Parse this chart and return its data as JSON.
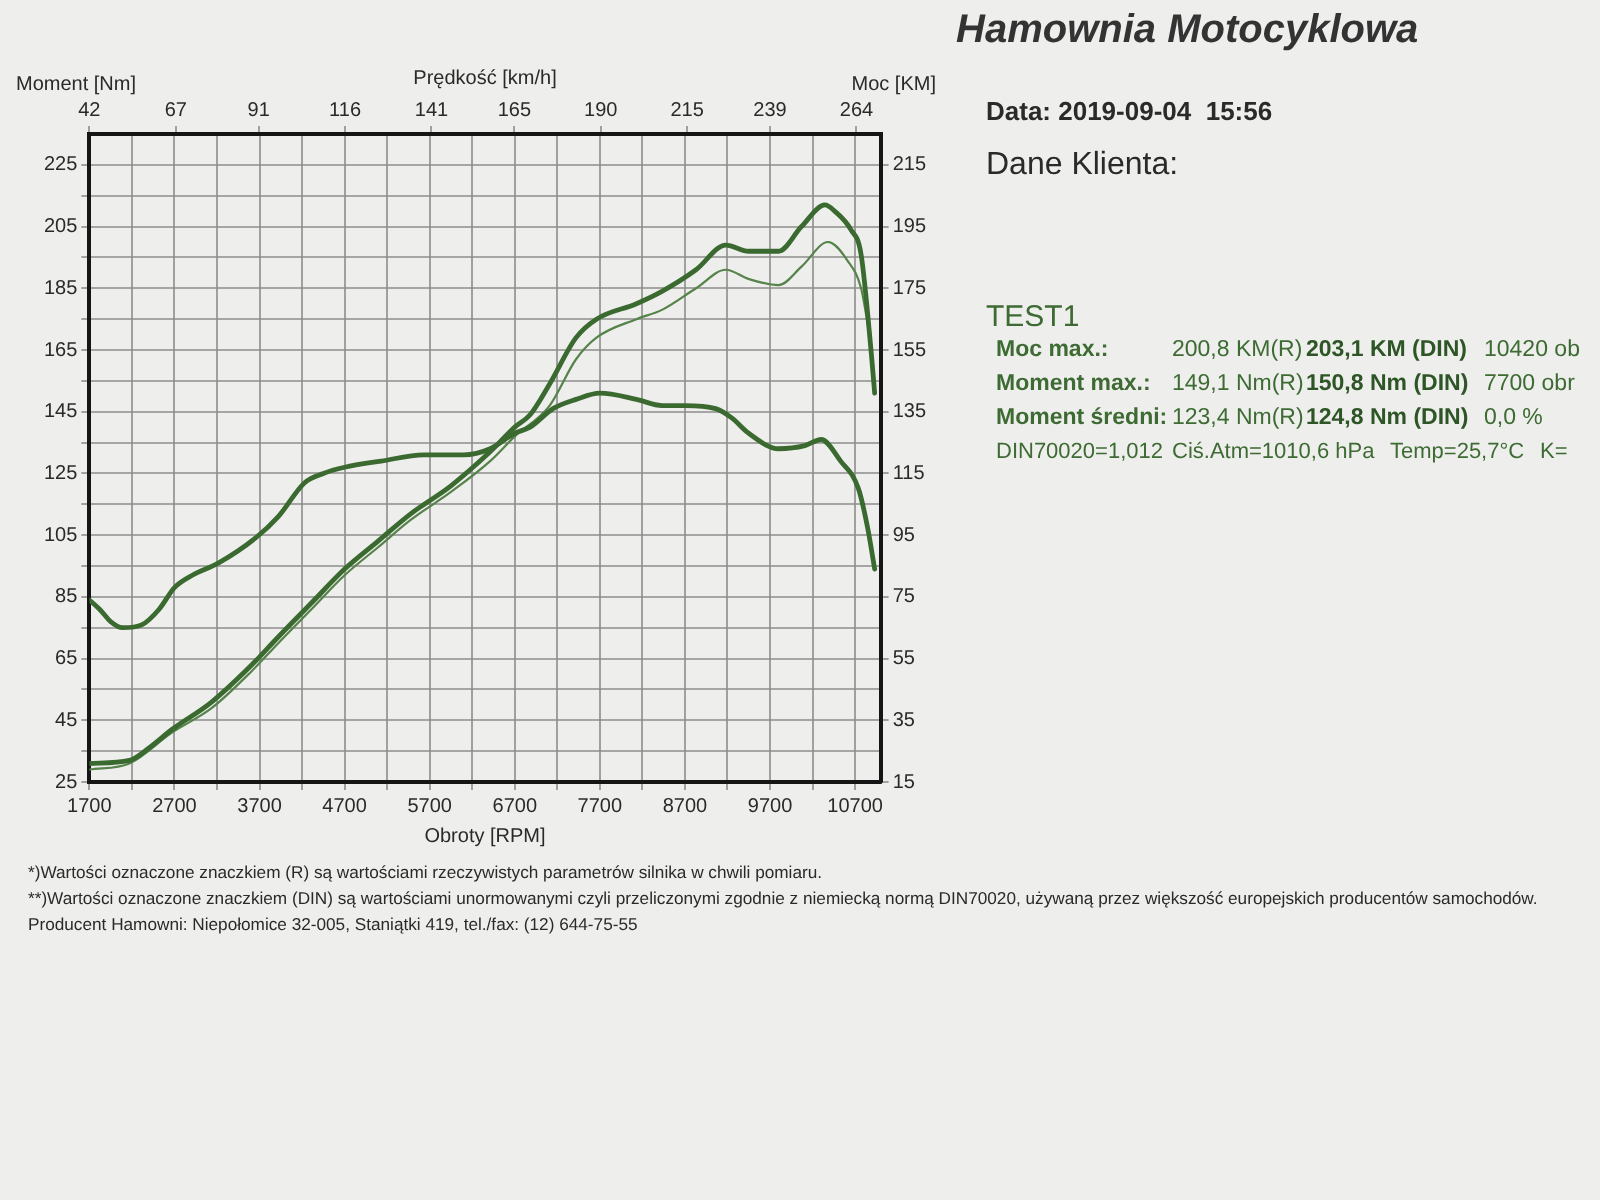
{
  "chart_data": {
    "type": "line",
    "title": "Hamownia Motocyklowa",
    "xlabel": "Obroty [RPM]",
    "x2label": "Prędkość [km/h]",
    "ylabel": "Moment [Nm]",
    "y2label": "Moc [KM]",
    "xlim": [
      1700,
      11000
    ],
    "xticks": [
      1700,
      {
        "value": 2200,
        "label": null
      },
      2700,
      {
        "value": 3200,
        "label": null
      },
      3700,
      {
        "value": 4200,
        "label": null
      },
      4700,
      {
        "value": 5200,
        "label": null
      },
      5700,
      {
        "value": 6200,
        "label": null
      },
      6700,
      {
        "value": 7200,
        "label": null
      },
      7700,
      {
        "value": 8200,
        "label": null
      },
      8700,
      {
        "value": 9200,
        "label": null
      },
      9700,
      {
        "value": 10200,
        "label": null
      },
      10700
    ],
    "x2lim": [
      42,
      271
    ],
    "x2ticks": [
      42,
      67,
      91,
      116,
      141,
      165,
      190,
      215,
      239,
      264
    ],
    "ylim": [
      25,
      235
    ],
    "yticks": [
      25,
      {
        "value": 35,
        "label": null
      },
      45,
      {
        "value": 55,
        "label": null
      },
      65,
      {
        "value": 75,
        "label": null
      },
      85,
      {
        "value": 95,
        "label": null
      },
      105,
      {
        "value": 115,
        "label": null
      },
      125,
      {
        "value": 135,
        "label": null
      },
      145,
      {
        "value": 155,
        "label": null
      },
      165,
      {
        "value": 175,
        "label": null
      },
      185,
      {
        "value": 195,
        "label": null
      },
      205,
      {
        "value": 215,
        "label": null
      },
      225
    ],
    "y2lim": [
      15,
      225
    ],
    "y2ticks": [
      15,
      35,
      55,
      75,
      95,
      115,
      135,
      155,
      175,
      195,
      215
    ],
    "grid": true,
    "marker": "none",
    "series": [
      {
        "color": "#3b6a31",
        "x": [
          1700,
          1820,
          1950,
          2090,
          2320,
          2520,
          2700,
          2910,
          3220,
          3650,
          3920,
          4230,
          4450,
          4700,
          5130,
          5630,
          6100,
          6410,
          6700,
          6880,
          7150,
          7420,
          7700,
          8130,
          8430,
          8700,
          9060,
          9250,
          9450,
          9800,
          10110,
          10300,
          10530,
          10740,
          10850,
          10930
        ],
        "values": [
          84,
          81,
          77,
          75,
          76,
          81,
          88,
          92,
          96,
          104,
          111,
          122,
          125,
          127,
          129,
          131,
          131,
          133,
          138,
          140,
          146,
          149,
          151,
          149,
          147,
          147,
          146,
          143,
          138,
          133,
          134,
          136,
          129,
          120,
          107,
          94
        ]
      },
      {
        "color": "#3b6a31",
        "axis": "y2",
        "x": [
          1700,
          2170,
          2400,
          2670,
          3140,
          3610,
          3920,
          4310,
          4700,
          5090,
          5480,
          5950,
          6410,
          6700,
          6880,
          7110,
          7420,
          7660,
          8130,
          8430,
          8830,
          9180,
          9450,
          9800,
          10070,
          10345,
          10460,
          10650,
          10770,
          10890,
          10930
        ],
        "values": [
          21,
          22,
          26,
          32,
          41,
          53,
          62,
          73,
          84,
          93,
          102,
          111,
          122,
          130,
          134,
          144,
          159,
          165,
          170,
          174,
          181,
          189,
          187,
          187,
          195,
          202,
          200,
          194,
          186,
          154,
          141
        ]
      },
      {
        "color": "#55834a",
        "axis": "y2",
        "x": [
          1700,
          2170,
          2670,
          3140,
          3610,
          3920,
          4310,
          4700,
          5090,
          5480,
          5950,
          6410,
          6700,
          7110,
          7420,
          7660,
          8130,
          8430,
          8830,
          9180,
          9450,
          9800,
          10070,
          10380,
          10610,
          10770,
          10880
        ],
        "values": [
          19,
          21,
          31,
          39,
          51,
          60,
          71,
          82,
          91,
          100,
          109,
          119,
          127,
          137,
          152,
          159,
          165,
          168,
          175,
          181,
          178,
          176,
          182,
          190,
          184,
          175,
          158
        ]
      }
    ],
    "annotations": [
      "Data: 2019-09-04  15:56",
      "Dane Klienta:",
      "TEST1",
      "Moc max.:",
      "200,8 KM(R)",
      "203,1 KM (DIN)",
      "10420 ob",
      "Moment max.:",
      "149,1 Nm(R)",
      "150,8 Nm (DIN)",
      "7700 obr",
      "Moment średni:",
      "123,4 Nm(R)",
      "124,8 Nm (DIN)",
      "0,0 %",
      "DIN70020=1,012",
      "Ciś.Atm=1010,6 hPa",
      "Temp=25,7°C",
      "K=",
      "*)Wartości oznaczone znaczkiem (R) są wartościami rzeczywistych parametrów silnika w chwili pomiaru.",
      "**)Wartości oznaczone znaczkiem (DIN) są wartościami unormowanymi czyli przeliczonymi zgodnie z niemiecką normą DIN70020, używaną przez większość europejskich producentów samochodów.",
      "Producent Hamowni: Niepołomice 32-005, Staniątki 419, tel./fax: (12) 644-75-55"
    ]
  }
}
